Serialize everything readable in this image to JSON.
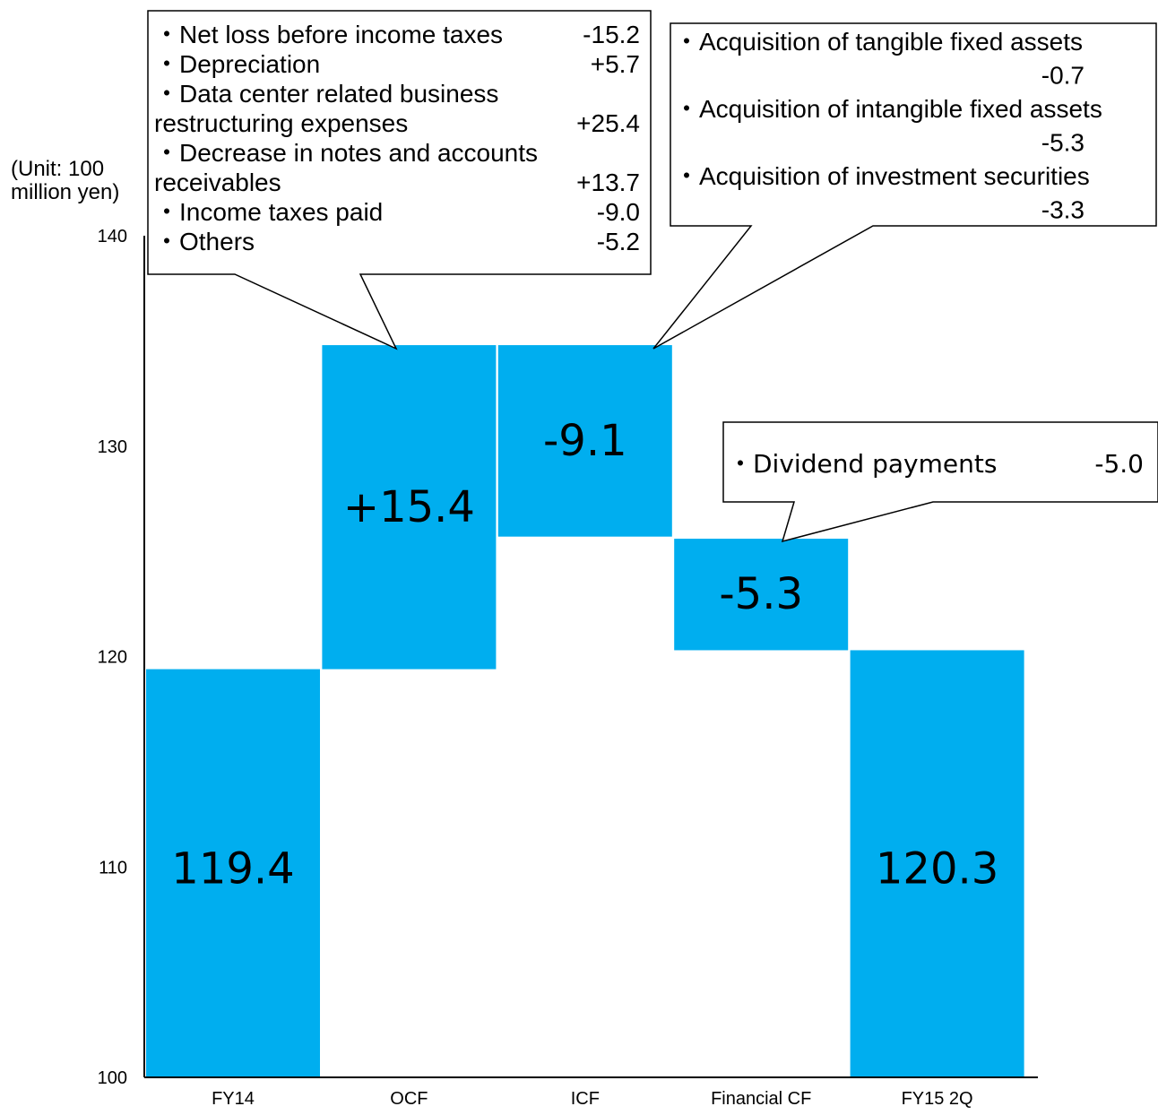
{
  "chart_data": {
    "type": "bar",
    "subtype": "waterfall",
    "unit_label": [
      "(Unit: 100",
      "million yen)"
    ],
    "categories": [
      "FY14",
      "OCF",
      "ICF",
      "Financial CF",
      "FY15 2Q"
    ],
    "bars": [
      {
        "category": "FY14",
        "from": 100,
        "to": 119.4,
        "label": "119.4"
      },
      {
        "category": "OCF",
        "from": 119.4,
        "to": 134.8,
        "label": "+15.4"
      },
      {
        "category": "ICF",
        "from": 125.7,
        "to": 134.8,
        "label": "-9.1"
      },
      {
        "category": "Financial CF",
        "from": 120.3,
        "to": 125.6,
        "label": "-5.3"
      },
      {
        "category": "FY15 2Q",
        "from": 100,
        "to": 120.3,
        "label": "120.3"
      }
    ],
    "ylim": [
      100,
      140
    ],
    "yticks": [
      "100",
      "110",
      "120",
      "130",
      "140"
    ],
    "bar_color": "#00AEEF",
    "callouts": [
      {
        "target": "OCF",
        "items": [
          {
            "label": "・Net loss before income taxes",
            "value": "-15.2"
          },
          {
            "label": "・Depreciation",
            "value": "+5.7"
          },
          {
            "label": "・Data center related business",
            "value": ""
          },
          {
            "label": "  restructuring expenses",
            "value": "+25.4"
          },
          {
            "label": "・Decrease in notes and accounts",
            "value": ""
          },
          {
            "label": "  receivables",
            "value": "+13.7"
          },
          {
            "label": "・Income taxes paid",
            "value": "-9.0"
          },
          {
            "label": "・Others",
            "value": "-5.2"
          }
        ]
      },
      {
        "target": "ICF",
        "items": [
          {
            "label": "・Acquisition of tangible fixed assets",
            "value": ""
          },
          {
            "label": "",
            "value": "-0.7"
          },
          {
            "label": "・Acquisition of intangible fixed assets",
            "value": ""
          },
          {
            "label": "",
            "value": "-5.3"
          },
          {
            "label": "・Acquisition of investment securities",
            "value": ""
          },
          {
            "label": "",
            "value": "-3.3"
          }
        ]
      },
      {
        "target": "Financial CF",
        "items": [
          {
            "label": "・Dividend payments",
            "value": "-5.0"
          }
        ]
      }
    ]
  }
}
